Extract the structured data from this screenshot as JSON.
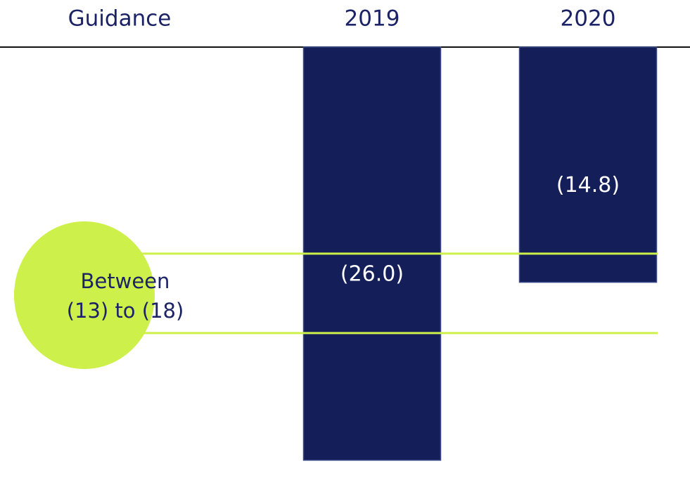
{
  "chart_data": {
    "type": "bar",
    "header": "Guidance",
    "categories": [
      "2019",
      "2020"
    ],
    "values": [
      -26.0,
      -14.8
    ],
    "value_labels": [
      "(26.0)",
      "(14.8)"
    ],
    "color": "#141f5a",
    "ylim": [
      -28,
      0
    ],
    "guidance": {
      "label_lines": [
        "Between",
        "(13) to (18)"
      ],
      "range": [
        -13,
        -18
      ],
      "color": "#cdf04a"
    }
  }
}
